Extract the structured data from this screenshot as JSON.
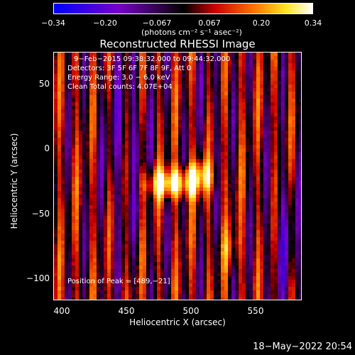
{
  "colorbar": {
    "ticks": [
      "−0.34",
      "−0.20",
      "−0.067",
      "0.067",
      "0.20",
      "0.34"
    ],
    "unit_label": "(photons cm⁻² s⁻¹ asec⁻²)"
  },
  "plot": {
    "title": "Reconstructed RHESSI Image",
    "info_lines": [
      "9−Feb−2015 09:38:32.000 to 09:44:32.000",
      "Detectors: 3F 5F 6F 7F 8F 9F, Att 0",
      "Energy Range: 3.0 − 6.0 keV",
      "Clean    Total counts: 4.07E+04"
    ],
    "peak_label": "Position of Peak = [489,−21]",
    "xlabel": "Heliocentric X (arcsec)",
    "ylabel": "Heliocentric Y (arcsec)",
    "xticks": [
      "400",
      "450",
      "500",
      "550"
    ],
    "yticks": [
      "50",
      "0",
      "−50",
      "−100"
    ]
  },
  "footer": {
    "timestamp": "18−May−2022 20:54"
  }
}
